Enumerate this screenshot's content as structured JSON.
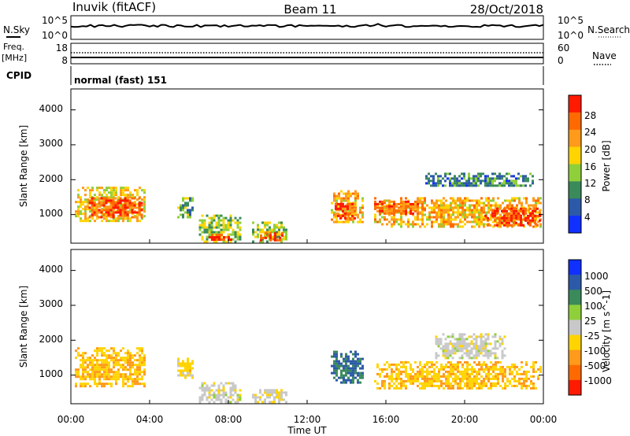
{
  "header": {
    "title": "Inuvik (fitACF)",
    "beam": "Beam 11",
    "date": "28/Oct/2018"
  },
  "top_panels": {
    "nsky_label": "N.Sky",
    "nsearch_label": "N.Search",
    "freq_label_line1": "Freq.",
    "freq_label_line2": "[MHz]",
    "nave_label": "Nave",
    "cpid_label": "CPID",
    "noise_left_ticks": [
      "10^5",
      "10^0"
    ],
    "noise_right_ticks": [
      "10^5",
      "10^0"
    ],
    "freq_left_ticks": [
      "18",
      "8"
    ],
    "freq_right_ticks": [
      "60",
      "0"
    ],
    "cpid_text": "normal (fast) 151"
  },
  "axes": {
    "x_ticks": [
      "00:00",
      "04:00",
      "08:00",
      "12:00",
      "16:00",
      "20:00",
      "00:00"
    ],
    "xlabel": "Time UT",
    "ylabel": "Slant Range [km]",
    "y_ticks": [
      "1000",
      "2000",
      "3000",
      "4000"
    ]
  },
  "colorbars": {
    "power": {
      "label": "Power [dB]",
      "ticks": [
        "4",
        "8",
        "12",
        "16",
        "20",
        "24",
        "28"
      ],
      "colors": [
        "#1030ff",
        "#2c5aa8",
        "#3a8a5a",
        "#8fcf3a",
        "#ffd400",
        "#ff9a1a",
        "#ff6a00",
        "#ff1a00"
      ]
    },
    "velocity": {
      "label": "Velocity [m s^-1]",
      "ticks": [
        "1000",
        "500",
        "100",
        "25",
        "-25",
        "-100",
        "-500",
        "-1000"
      ],
      "colors": [
        "#1030ff",
        "#2c5aa8",
        "#3a8a5a",
        "#8fcf3a",
        "#c8c8c8",
        "#ffd400",
        "#ff9a1a",
        "#ff6a00",
        "#ff1a00"
      ]
    }
  },
  "chart_data": [
    {
      "type": "heatmap",
      "name_id": "power",
      "xlabel": "Time UT",
      "ylabel": "Slant Range [km]",
      "xlim": [
        0,
        24
      ],
      "ylim": [
        180,
        4600
      ],
      "colorbar_label": "Power [dB]",
      "blobs": [
        {
          "t0": 0.2,
          "t1": 3.8,
          "r0": 800,
          "r1": 1800,
          "value": 18
        },
        {
          "t0": 0.9,
          "t1": 3.6,
          "r0": 900,
          "r1": 1500,
          "value": 27
        },
        {
          "t0": 5.4,
          "t1": 6.2,
          "r0": 900,
          "r1": 1500,
          "value": 12
        },
        {
          "t0": 6.5,
          "t1": 8.6,
          "r0": 250,
          "r1": 1000,
          "value": 14
        },
        {
          "t0": 7.0,
          "t1": 8.2,
          "r0": 250,
          "r1": 450,
          "value": 29
        },
        {
          "t0": 9.2,
          "t1": 11.0,
          "r0": 250,
          "r1": 800,
          "value": 15
        },
        {
          "t0": 9.6,
          "t1": 10.8,
          "r0": 250,
          "r1": 500,
          "value": 29
        },
        {
          "t0": 13.2,
          "t1": 14.8,
          "r0": 800,
          "r1": 1700,
          "value": 20
        },
        {
          "t0": 13.4,
          "t1": 14.4,
          "r0": 900,
          "r1": 1400,
          "value": 27
        },
        {
          "t0": 15.4,
          "t1": 23.9,
          "r0": 650,
          "r1": 1500,
          "value": 20
        },
        {
          "t0": 15.4,
          "t1": 18.0,
          "r0": 1000,
          "r1": 1400,
          "value": 26
        },
        {
          "t0": 21.0,
          "t1": 23.8,
          "r0": 700,
          "r1": 1200,
          "value": 28
        },
        {
          "t0": 18.0,
          "t1": 23.5,
          "r0": 1800,
          "r1": 2200,
          "value": 9
        }
      ]
    },
    {
      "type": "heatmap",
      "name_id": "velocity",
      "xlabel": "Time UT",
      "ylabel": "Slant Range [km]",
      "xlim": [
        0,
        24
      ],
      "ylim": [
        180,
        4600
      ],
      "colorbar_label": "Velocity [m s^-1]",
      "blobs": [
        {
          "t0": 0.2,
          "t1": 3.8,
          "r0": 700,
          "r1": 1800,
          "value": -300
        },
        {
          "t0": 5.4,
          "t1": 6.2,
          "r0": 900,
          "r1": 1500,
          "value": -200
        },
        {
          "t0": 6.5,
          "t1": 8.6,
          "r0": 250,
          "r1": 800,
          "value": 0
        },
        {
          "t0": 9.2,
          "t1": 11.0,
          "r0": 250,
          "r1": 600,
          "value": -50
        },
        {
          "t0": 13.2,
          "t1": 14.8,
          "r0": 800,
          "r1": 1700,
          "value": 600
        },
        {
          "t0": 15.4,
          "t1": 23.9,
          "r0": 650,
          "r1": 1400,
          "value": -300
        },
        {
          "t0": 18.5,
          "t1": 22.0,
          "r0": 1500,
          "r1": 2200,
          "value": 0
        }
      ]
    }
  ]
}
